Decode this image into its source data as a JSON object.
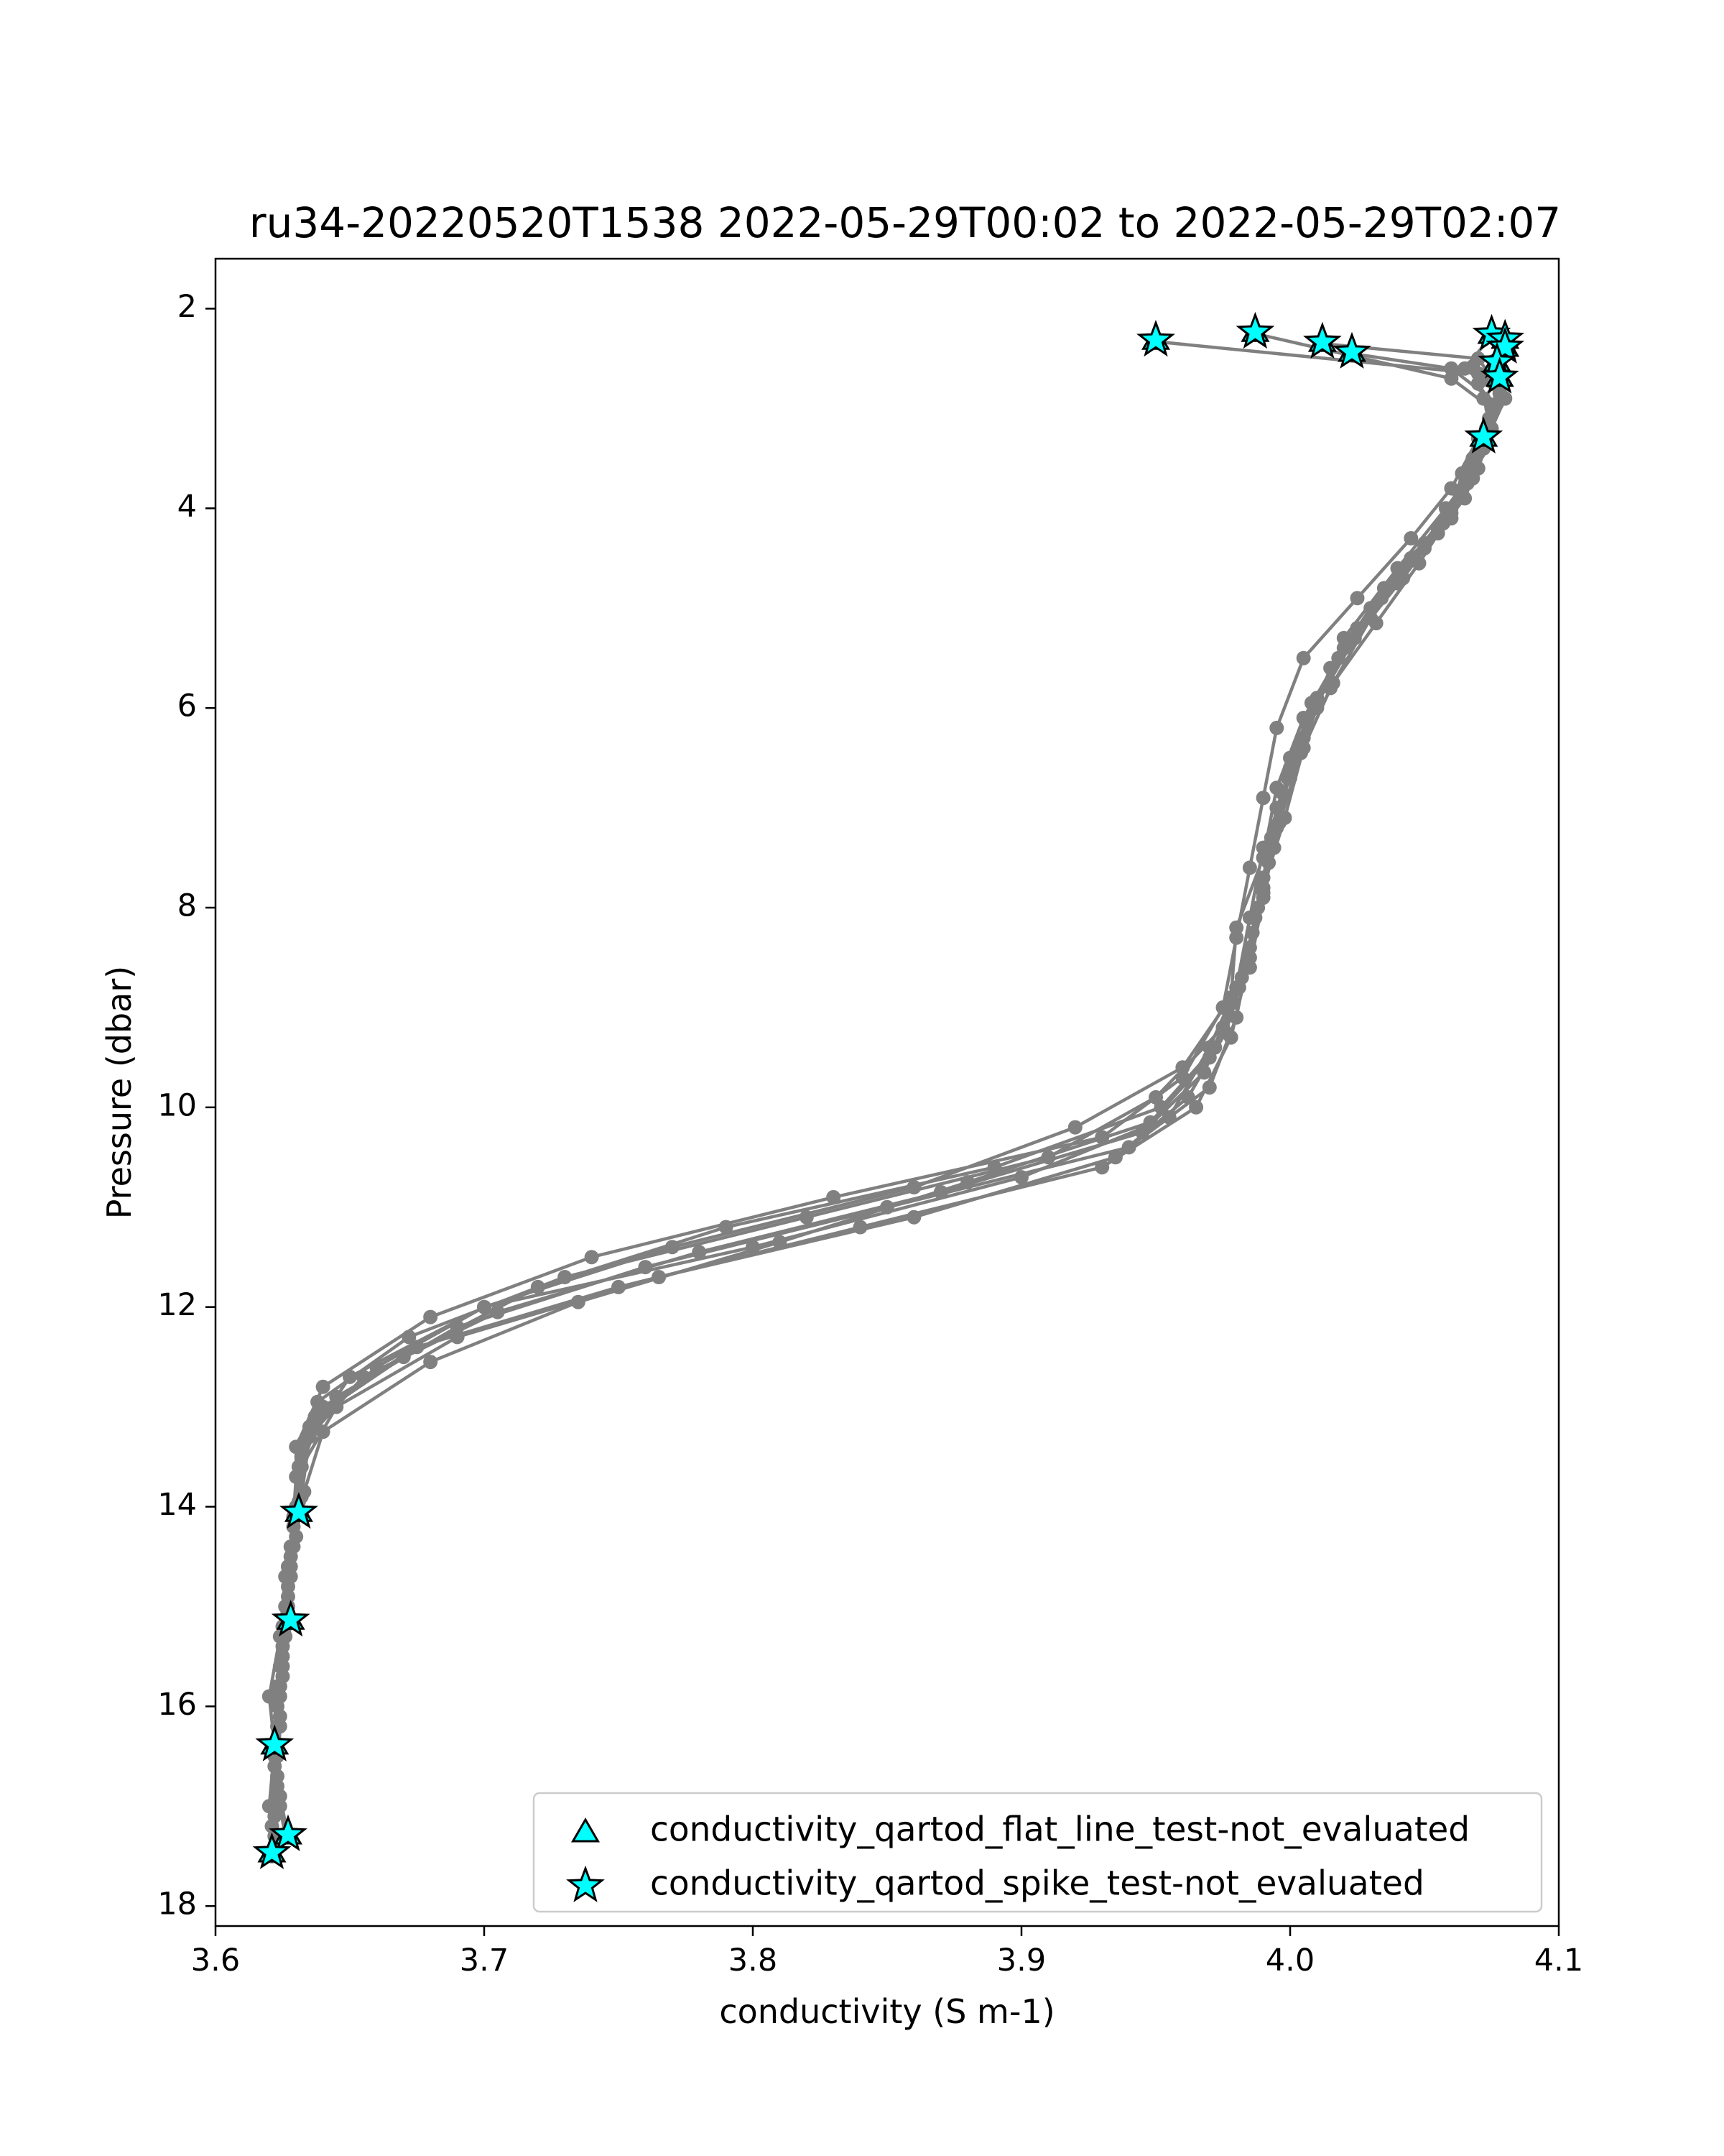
{
  "chart_data": {
    "type": "line",
    "title": "ru34-20220520T1538 2022-05-29T00:02 to 2022-05-29T02:07",
    "xlabel": "conductivity (S m-1)",
    "ylabel": "Pressure (dbar)",
    "xlim": [
      3.6,
      4.1
    ],
    "ylim": [
      18.2,
      1.5
    ],
    "y_inverted": true,
    "x_ticks": [
      "3.6",
      "3.7",
      "3.8",
      "3.9",
      "4.0",
      "4.1"
    ],
    "y_ticks": [
      "2",
      "4",
      "6",
      "8",
      "10",
      "12",
      "14",
      "16",
      "18"
    ],
    "grid": false,
    "legend_position": "lower-right",
    "series_color": "#808080",
    "flag_color": "#00ffff",
    "series": [
      {
        "points": [
          [
            3.95,
            2.33
          ],
          [
            4.07,
            2.65
          ],
          [
            4.08,
            2.9
          ],
          [
            4.075,
            3.2
          ],
          [
            4.07,
            3.6
          ],
          [
            4.06,
            4.1
          ],
          [
            4.04,
            4.6
          ],
          [
            4.02,
            5.3
          ],
          [
            4.01,
            6.0
          ],
          [
            4.0,
            6.7
          ],
          [
            3.99,
            7.4
          ],
          [
            3.985,
            8.1
          ],
          [
            3.98,
            8.8
          ],
          [
            3.97,
            9.4
          ],
          [
            3.955,
            10.1
          ],
          [
            3.9,
            10.7
          ],
          [
            3.8,
            11.4
          ],
          [
            3.7,
            12.0
          ],
          [
            3.66,
            12.6
          ],
          [
            3.635,
            13.2
          ],
          [
            3.63,
            14.05
          ],
          [
            3.627,
            14.6
          ],
          [
            3.628,
            15.15
          ],
          [
            3.625,
            15.7
          ],
          [
            3.622,
            16.4
          ],
          [
            3.624,
            17.0
          ],
          [
            3.626,
            17.3
          ]
        ]
      },
      {
        "points": [
          [
            3.987,
            2.25
          ],
          [
            4.06,
            2.7
          ],
          [
            4.075,
            3.0
          ],
          [
            4.072,
            3.4
          ],
          [
            4.065,
            3.9
          ],
          [
            4.05,
            4.4
          ],
          [
            4.03,
            5.0
          ],
          [
            4.015,
            5.6
          ],
          [
            4.005,
            6.3
          ],
          [
            3.995,
            7.0
          ],
          [
            3.99,
            7.7
          ],
          [
            3.985,
            8.4
          ],
          [
            3.98,
            9.1
          ],
          [
            3.97,
            9.8
          ],
          [
            3.94,
            10.4
          ],
          [
            3.85,
            11.0
          ],
          [
            3.76,
            11.6
          ],
          [
            3.69,
            12.2
          ],
          [
            3.645,
            12.9
          ],
          [
            3.632,
            13.5
          ],
          [
            3.63,
            14.05
          ],
          [
            3.626,
            14.7
          ],
          [
            3.624,
            15.3
          ],
          [
            3.62,
            15.9
          ],
          [
            3.622,
            16.4
          ],
          [
            3.62,
            17.0
          ],
          [
            3.621,
            17.5
          ]
        ]
      },
      {
        "points": [
          [
            4.012,
            2.35
          ],
          [
            4.07,
            2.5
          ],
          [
            4.078,
            2.8
          ],
          [
            4.07,
            3.3
          ],
          [
            4.06,
            3.8
          ],
          [
            4.045,
            4.3
          ],
          [
            4.025,
            4.9
          ],
          [
            4.005,
            5.5
          ],
          [
            3.995,
            6.2
          ],
          [
            3.99,
            6.9
          ],
          [
            3.985,
            7.6
          ],
          [
            3.98,
            8.3
          ],
          [
            3.975,
            9.0
          ],
          [
            3.96,
            9.7
          ],
          [
            3.93,
            10.3
          ],
          [
            3.83,
            10.9
          ],
          [
            3.74,
            11.5
          ],
          [
            3.68,
            12.1
          ],
          [
            3.64,
            12.8
          ],
          [
            3.63,
            13.4
          ],
          [
            3.63,
            14.05
          ],
          [
            3.628,
            14.5
          ],
          [
            3.626,
            15.0
          ],
          [
            3.624,
            15.6
          ],
          [
            3.623,
            16.2
          ],
          [
            3.623,
            16.9
          ],
          [
            3.622,
            17.45
          ]
        ]
      },
      {
        "points": [
          [
            4.023,
            2.45
          ],
          [
            4.06,
            2.6
          ],
          [
            4.077,
            2.95
          ],
          [
            4.071,
            3.3
          ],
          [
            4.068,
            3.7
          ],
          [
            4.055,
            4.2
          ],
          [
            4.035,
            4.8
          ],
          [
            4.02,
            5.4
          ],
          [
            4.005,
            6.1
          ],
          [
            3.995,
            6.8
          ],
          [
            3.99,
            7.5
          ],
          [
            3.98,
            8.2
          ],
          [
            3.978,
            8.9
          ],
          [
            3.96,
            9.6
          ],
          [
            3.92,
            10.2
          ],
          [
            3.86,
            10.8
          ],
          [
            3.77,
            11.4
          ],
          [
            3.7,
            12.0
          ],
          [
            3.65,
            12.7
          ],
          [
            3.635,
            13.3
          ],
          [
            3.632,
            13.9
          ],
          [
            3.628,
            14.4
          ],
          [
            3.627,
            15.1
          ],
          [
            3.624,
            15.8
          ],
          [
            3.622,
            16.4
          ],
          [
            3.624,
            16.9
          ],
          [
            3.627,
            17.3
          ]
        ]
      },
      {
        "points": [
          [
            4.075,
            2.27
          ],
          [
            4.065,
            2.6
          ],
          [
            4.08,
            2.9
          ],
          [
            4.073,
            3.2
          ],
          [
            4.069,
            3.6
          ],
          [
            4.058,
            4.0
          ],
          [
            4.04,
            4.6
          ],
          [
            4.025,
            5.2
          ],
          [
            4.01,
            5.9
          ],
          [
            4.0,
            6.5
          ],
          [
            3.995,
            7.2
          ],
          [
            3.99,
            7.9
          ],
          [
            3.985,
            8.6
          ],
          [
            3.975,
            9.2
          ],
          [
            3.95,
            9.9
          ],
          [
            3.91,
            10.5
          ],
          [
            3.82,
            11.1
          ],
          [
            3.73,
            11.7
          ],
          [
            3.672,
            12.3
          ],
          [
            3.638,
            12.95
          ],
          [
            3.631,
            13.6
          ],
          [
            3.63,
            14.07
          ],
          [
            3.627,
            14.6
          ],
          [
            3.625,
            15.2
          ],
          [
            3.623,
            15.8
          ],
          [
            3.622,
            16.5
          ],
          [
            3.621,
            17.48
          ]
        ]
      },
      {
        "points": [
          [
            4.08,
            2.32
          ],
          [
            4.075,
            2.65
          ],
          [
            4.078,
            2.85
          ],
          [
            4.074,
            3.15
          ],
          [
            4.068,
            3.5
          ],
          [
            4.06,
            4.0
          ],
          [
            4.045,
            4.5
          ],
          [
            4.03,
            5.1
          ],
          [
            4.015,
            5.8
          ],
          [
            4.005,
            6.4
          ],
          [
            3.998,
            7.1
          ],
          [
            3.99,
            7.8
          ],
          [
            3.985,
            8.5
          ],
          [
            3.978,
            9.3
          ],
          [
            3.965,
            10.0
          ],
          [
            3.93,
            10.6
          ],
          [
            3.84,
            11.2
          ],
          [
            3.75,
            11.8
          ],
          [
            3.675,
            12.4
          ],
          [
            3.64,
            13.0
          ],
          [
            3.632,
            13.6
          ],
          [
            3.629,
            14.2
          ],
          [
            3.627,
            14.8
          ],
          [
            3.625,
            15.4
          ],
          [
            3.623,
            16.0
          ],
          [
            3.622,
            16.6
          ],
          [
            3.621,
            17.2
          ]
        ]
      },
      {
        "points": [
          [
            4.077,
            2.55
          ],
          [
            4.07,
            2.75
          ],
          [
            4.076,
            3.0
          ],
          [
            4.071,
            3.33
          ],
          [
            4.066,
            3.75
          ],
          [
            4.055,
            4.25
          ],
          [
            4.04,
            4.75
          ],
          [
            4.022,
            5.35
          ],
          [
            4.008,
            5.95
          ],
          [
            4.0,
            6.6
          ],
          [
            3.993,
            7.3
          ],
          [
            3.988,
            8.0
          ],
          [
            3.982,
            8.7
          ],
          [
            3.972,
            9.4
          ],
          [
            3.952,
            10.0
          ],
          [
            3.89,
            10.6
          ],
          [
            3.79,
            11.2
          ],
          [
            3.72,
            11.8
          ],
          [
            3.67,
            12.5
          ],
          [
            3.637,
            13.1
          ],
          [
            3.63,
            13.7
          ],
          [
            3.629,
            14.1
          ],
          [
            3.628,
            14.7
          ],
          [
            3.626,
            15.3
          ],
          [
            3.624,
            15.9
          ],
          [
            3.623,
            16.5
          ],
          [
            3.622,
            17.1
          ]
        ]
      },
      {
        "points": [
          [
            4.078,
            2.7
          ],
          [
            4.072,
            2.9
          ],
          [
            4.074,
            3.1
          ],
          [
            4.07,
            3.45
          ],
          [
            4.063,
            3.85
          ],
          [
            4.05,
            4.35
          ],
          [
            4.034,
            4.9
          ],
          [
            4.018,
            5.5
          ],
          [
            4.006,
            6.15
          ],
          [
            3.997,
            6.85
          ],
          [
            3.992,
            7.55
          ],
          [
            3.986,
            8.25
          ],
          [
            3.979,
            8.95
          ],
          [
            3.968,
            9.65
          ],
          [
            3.945,
            10.25
          ],
          [
            3.87,
            10.85
          ],
          [
            3.78,
            11.45
          ],
          [
            3.705,
            12.05
          ],
          [
            3.655,
            12.7
          ],
          [
            3.633,
            13.35
          ],
          [
            3.631,
            13.95
          ],
          [
            3.629,
            14.4
          ],
          [
            3.627,
            15.0
          ],
          [
            3.625,
            15.6
          ],
          [
            3.624,
            16.2
          ],
          [
            3.623,
            16.8
          ],
          [
            3.622,
            17.4
          ]
        ]
      },
      {
        "points": [
          [
            4.072,
            3.3
          ],
          [
            4.064,
            3.65
          ],
          [
            4.06,
            4.05
          ],
          [
            4.048,
            4.55
          ],
          [
            4.032,
            5.15
          ],
          [
            4.016,
            5.75
          ],
          [
            4.004,
            6.45
          ],
          [
            3.996,
            7.15
          ],
          [
            3.99,
            7.85
          ],
          [
            3.984,
            8.55
          ],
          [
            3.976,
            9.25
          ],
          [
            3.962,
            9.9
          ],
          [
            3.935,
            10.5
          ],
          [
            3.86,
            11.1
          ],
          [
            3.765,
            11.7
          ],
          [
            3.69,
            12.3
          ],
          [
            3.645,
            13.0
          ],
          [
            3.632,
            13.6
          ],
          [
            3.63,
            14.0
          ],
          [
            3.628,
            14.6
          ],
          [
            3.626,
            15.2
          ],
          [
            3.624,
            15.8
          ],
          [
            3.623,
            16.4
          ],
          [
            3.622,
            17.0
          ],
          [
            3.621,
            17.5
          ]
        ]
      },
      {
        "points": [
          [
            4.08,
            2.4
          ],
          [
            4.068,
            2.58
          ],
          [
            4.079,
            2.88
          ],
          [
            4.073,
            3.25
          ],
          [
            4.067,
            3.68
          ],
          [
            4.057,
            4.15
          ],
          [
            4.042,
            4.7
          ],
          [
            4.024,
            5.3
          ],
          [
            4.009,
            6.0
          ],
          [
            3.999,
            6.7
          ],
          [
            3.994,
            7.4
          ],
          [
            3.987,
            8.1
          ],
          [
            3.981,
            8.8
          ],
          [
            3.97,
            9.5
          ],
          [
            3.948,
            10.15
          ],
          [
            3.88,
            10.75
          ],
          [
            3.81,
            11.35
          ],
          [
            3.735,
            11.95
          ],
          [
            3.68,
            12.55
          ],
          [
            3.64,
            13.25
          ],
          [
            3.633,
            13.85
          ],
          [
            3.63,
            14.3
          ],
          [
            3.627,
            14.9
          ],
          [
            3.625,
            15.5
          ],
          [
            3.624,
            16.1
          ],
          [
            3.623,
            16.7
          ],
          [
            3.622,
            17.3
          ]
        ]
      }
    ],
    "flags": {
      "flat_line": [
        [
          3.95,
          2.33
        ],
        [
          3.987,
          2.25
        ],
        [
          4.012,
          2.35
        ],
        [
          4.023,
          2.45
        ],
        [
          4.075,
          2.27
        ],
        [
          4.08,
          2.32
        ],
        [
          4.08,
          2.4
        ],
        [
          4.077,
          2.55
        ],
        [
          4.078,
          2.7
        ],
        [
          4.072,
          3.3
        ],
        [
          3.631,
          14.07
        ],
        [
          3.628,
          15.15
        ],
        [
          3.622,
          16.4
        ],
        [
          3.627,
          17.3
        ],
        [
          3.621,
          17.48
        ]
      ],
      "spike": [
        [
          3.95,
          2.33
        ],
        [
          3.987,
          2.25
        ],
        [
          4.012,
          2.35
        ],
        [
          4.023,
          2.45
        ],
        [
          4.075,
          2.27
        ],
        [
          4.08,
          2.32
        ],
        [
          4.08,
          2.4
        ],
        [
          4.077,
          2.55
        ],
        [
          4.078,
          2.7
        ],
        [
          4.072,
          3.3
        ],
        [
          3.631,
          14.07
        ],
        [
          3.628,
          15.15
        ],
        [
          3.622,
          16.4
        ],
        [
          3.627,
          17.3
        ],
        [
          3.621,
          17.48
        ]
      ]
    },
    "legend": [
      {
        "label": "conductivity_qartod_flat_line_test-not_evaluated",
        "marker": "triangle"
      },
      {
        "label": "conductivity_qartod_spike_test-not_evaluated",
        "marker": "star"
      }
    ]
  }
}
